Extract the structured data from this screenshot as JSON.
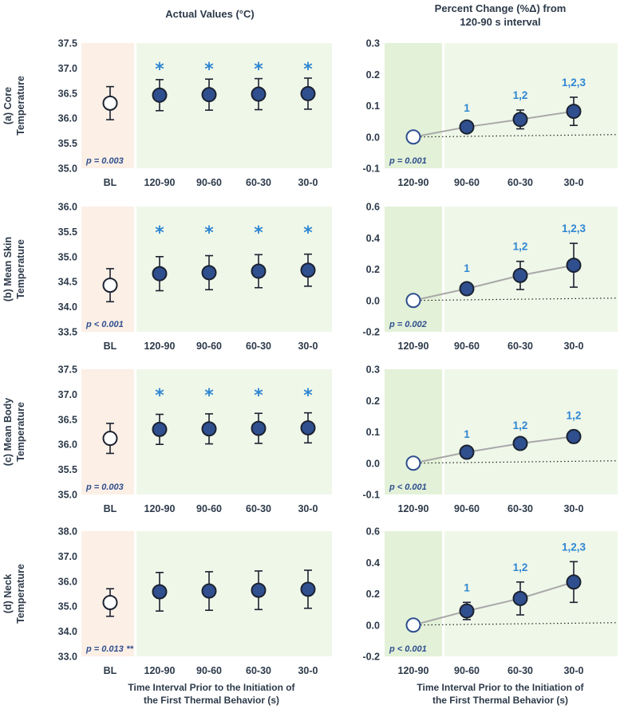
{
  "headers": {
    "left": "Actual Values (°C)",
    "right_line1": "Percent Change (%Δ) from",
    "right_line2": "120-90 s interval"
  },
  "x_titles": {
    "left_line1": "Time Interval Prior to the Initiation of",
    "left_line2": "the First Thermal Behavior (s)",
    "right_line1": "Time Interval Prior to the Initiation of",
    "right_line2": "the First Thermal Behavior (s)"
  },
  "colors": {
    "bl_band": "#fcefe6",
    "green_band": "#eff7e9",
    "green_band_dark": "#e3f1d8",
    "marker_fill": "#2f4f8f",
    "marker_stroke": "#1b2230",
    "star": "#2f86d1",
    "line": "#a8a8a8"
  },
  "chart_data": [
    {
      "type": "scatter",
      "panel": "left",
      "row_label_line1": "(a) Core",
      "row_label_line2": "Temperature",
      "categories": [
        "BL",
        "120-90",
        "90-60",
        "60-30",
        "30-0"
      ],
      "y_ticks": [
        "37.5",
        "37.0",
        "36.5",
        "36.0",
        "35.5",
        "35.0"
      ],
      "ylim": [
        35.0,
        37.5
      ],
      "values": [
        36.3,
        36.46,
        36.47,
        36.48,
        36.49
      ],
      "err": [
        0.33,
        0.31,
        0.31,
        0.31,
        0.31
      ],
      "markers": [
        "",
        "*",
        "*",
        "*",
        "*"
      ],
      "marker_note": "",
      "p_value": "p = 0.003",
      "baseline_open": true
    },
    {
      "type": "line",
      "panel": "right",
      "categories": [
        "120-90",
        "90-60",
        "60-30",
        "30-0"
      ],
      "y_ticks": [
        "0.3",
        "0.2",
        "0.1",
        "0.0",
        "-0.1"
      ],
      "ylim": [
        -0.1,
        0.3
      ],
      "values": [
        0.0,
        0.032,
        0.056,
        0.082
      ],
      "err": [
        0.0,
        0.013,
        0.03,
        0.045
      ],
      "markers": [
        "",
        "1",
        "1,2",
        "1,2,3"
      ],
      "p_value": "p = 0.001"
    },
    {
      "type": "scatter",
      "panel": "left",
      "row_label_line1": "(b) Mean Skin",
      "row_label_line2": "Temperature",
      "categories": [
        "BL",
        "120-90",
        "90-60",
        "60-30",
        "30-0"
      ],
      "y_ticks": [
        "36.0",
        "35.5",
        "35.0",
        "34.5",
        "34.0",
        "33.5"
      ],
      "ylim": [
        33.5,
        36.0
      ],
      "values": [
        34.43,
        34.66,
        34.68,
        34.71,
        34.73
      ],
      "err": [
        0.33,
        0.34,
        0.34,
        0.33,
        0.32
      ],
      "markers": [
        "",
        "*",
        "*",
        "*",
        "*"
      ],
      "marker_note": "",
      "p_value": "p < 0.001",
      "baseline_open": true
    },
    {
      "type": "line",
      "panel": "right",
      "categories": [
        "120-90",
        "90-60",
        "60-30",
        "30-0"
      ],
      "y_ticks": [
        "0.6",
        "0.4",
        "0.2",
        "0.0",
        "-0.2"
      ],
      "ylim": [
        -0.2,
        0.6
      ],
      "values": [
        0.0,
        0.075,
        0.16,
        0.225
      ],
      "err": [
        0.0,
        0.035,
        0.09,
        0.14
      ],
      "markers": [
        "",
        "1",
        "1,2",
        "1,2,3"
      ],
      "p_value": "p = 0.002"
    },
    {
      "type": "scatter",
      "panel": "left",
      "row_label_line1": "(c) Mean Body",
      "row_label_line2": "Temperature",
      "categories": [
        "BL",
        "120-90",
        "90-60",
        "60-30",
        "30-0"
      ],
      "y_ticks": [
        "37.5",
        "37.0",
        "36.5",
        "36.0",
        "35.5",
        "35.0"
      ],
      "ylim": [
        35.0,
        37.5
      ],
      "values": [
        36.12,
        36.3,
        36.31,
        36.32,
        36.33
      ],
      "err": [
        0.3,
        0.3,
        0.3,
        0.3,
        0.3
      ],
      "markers": [
        "",
        "*",
        "*",
        "*",
        "*"
      ],
      "marker_note": "",
      "p_value": "p = 0.003",
      "baseline_open": true
    },
    {
      "type": "line",
      "panel": "right",
      "categories": [
        "120-90",
        "90-60",
        "60-30",
        "30-0"
      ],
      "y_ticks": [
        "0.3",
        "0.2",
        "0.1",
        "0.0",
        "-0.1"
      ],
      "ylim": [
        -0.1,
        0.3
      ],
      "values": [
        0.0,
        0.035,
        0.063,
        0.085
      ],
      "err": [
        0.0,
        0.01,
        0.01,
        0.02
      ],
      "markers": [
        "",
        "1",
        "1,2",
        "1,2"
      ],
      "p_value": "p < 0.001"
    },
    {
      "type": "scatter",
      "panel": "left",
      "row_label_line1": "(d) Neck",
      "row_label_line2": "Temperature",
      "categories": [
        "BL",
        "120-90",
        "90-60",
        "60-30",
        "30-0"
      ],
      "y_ticks": [
        "38.0",
        "37.0",
        "36.0",
        "35.0",
        "34.0",
        "33.0"
      ],
      "ylim": [
        33.0,
        38.0
      ],
      "values": [
        35.15,
        35.58,
        35.61,
        35.64,
        35.68
      ],
      "err": [
        0.55,
        0.77,
        0.77,
        0.77,
        0.76
      ],
      "markers": [
        "",
        "",
        "",
        "",
        ""
      ],
      "marker_note": "**",
      "p_value": "p = 0.013",
      "baseline_open": true
    },
    {
      "type": "line",
      "panel": "right",
      "categories": [
        "120-90",
        "90-60",
        "60-30",
        "30-0"
      ],
      "y_ticks": [
        "0.6",
        "0.4",
        "0.2",
        "0.0",
        "-0.2"
      ],
      "ylim": [
        -0.2,
        0.6
      ],
      "values": [
        0.0,
        0.09,
        0.17,
        0.275
      ],
      "err": [
        0.0,
        0.055,
        0.105,
        0.13
      ],
      "markers": [
        "",
        "1",
        "1,2",
        "1,2,3"
      ],
      "p_value": "p < 0.001"
    }
  ]
}
